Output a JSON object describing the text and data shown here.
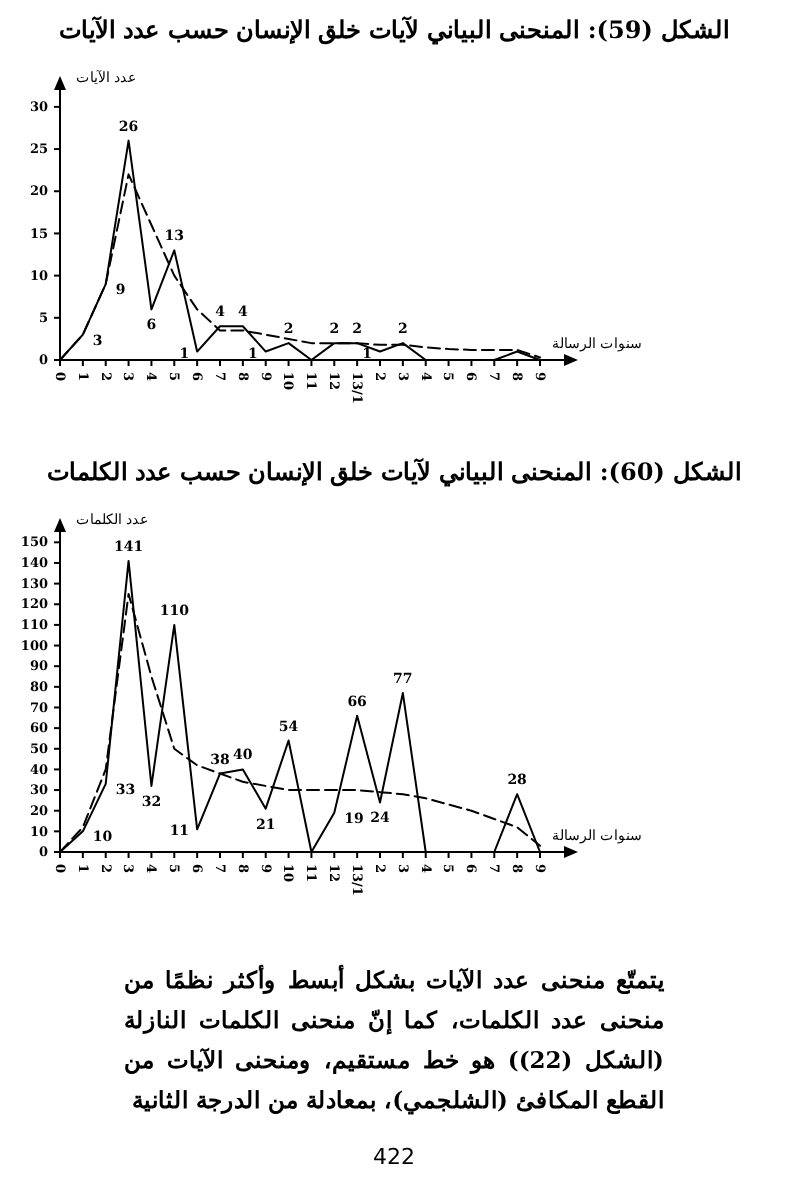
{
  "chart_data": [
    {
      "type": "line",
      "title": "الشكل (59): المنحنى البياني لآيات خلق الإنسان حسب عدد الآيات",
      "xlabel": "سنوات الرسالة",
      "ylabel": "عدد الآيات",
      "categories": [
        "0",
        "1",
        "2",
        "3",
        "4",
        "5",
        "6",
        "7",
        "8",
        "9",
        "10",
        "11",
        "12",
        "13/1",
        "2",
        "3",
        "4",
        "5",
        "6",
        "7",
        "8",
        "9"
      ],
      "ylim": [
        0,
        32
      ],
      "yticks": [
        0,
        5,
        10,
        15,
        20,
        25,
        30
      ],
      "grid": false,
      "marker": "none",
      "series": [
        {
          "color": "#000000",
          "line_style": "solid",
          "values": [
            0,
            3,
            9,
            26,
            6,
            13,
            1,
            4,
            4,
            1,
            2,
            0,
            2,
            2,
            1,
            2,
            0,
            0,
            0,
            0,
            1,
            0
          ],
          "value_labels": [
            null,
            "3",
            "9",
            "26",
            "6",
            "13",
            "1",
            "4",
            "4",
            "1",
            "2",
            null,
            "2",
            "2",
            "1",
            "2",
            null,
            null,
            null,
            null,
            null,
            null
          ]
        },
        {
          "color": "#000000",
          "line_style": "dashed",
          "values": [
            0,
            3,
            9,
            22,
            16,
            10,
            6,
            3.5,
            3.5,
            3,
            2.5,
            2,
            2,
            2,
            1.8,
            1.8,
            1.5,
            1.3,
            1.2,
            1.2,
            1.2,
            0.3
          ]
        }
      ]
    },
    {
      "type": "line",
      "title": "الشكل (60): المنحنى البياني لآيات خلق الإنسان حسب عدد الكلمات",
      "xlabel": "سنوات الرسالة",
      "ylabel": "عدد الكلمات",
      "categories": [
        "0",
        "1",
        "2",
        "3",
        "4",
        "5",
        "6",
        "7",
        "8",
        "9",
        "10",
        "11",
        "12",
        "13/1",
        "2",
        "3",
        "4",
        "5",
        "6",
        "7",
        "8",
        "9"
      ],
      "ylim": [
        0,
        155
      ],
      "yticks": [
        0,
        10,
        20,
        30,
        40,
        50,
        60,
        70,
        80,
        90,
        100,
        110,
        120,
        130,
        140,
        150
      ],
      "grid": false,
      "marker": "none",
      "series": [
        {
          "color": "#000000",
          "line_style": "solid",
          "values": [
            0,
            10,
            33,
            141,
            32,
            110,
            11,
            38,
            40,
            21,
            54,
            0,
            19,
            66,
            24,
            77,
            0,
            0,
            0,
            0,
            28,
            0
          ],
          "value_labels": [
            null,
            "10",
            "33",
            "141",
            "32",
            "110",
            "11",
            "38",
            "40",
            "21",
            "54",
            null,
            "19",
            "66",
            "24",
            "77",
            null,
            null,
            null,
            null,
            "28",
            null
          ]
        },
        {
          "color": "#000000",
          "line_style": "dashed",
          "values": [
            0,
            12,
            40,
            125,
            85,
            50,
            42,
            38,
            34,
            32,
            30,
            30,
            30,
            30,
            29,
            28,
            26,
            23,
            20,
            16,
            12,
            3
          ]
        }
      ]
    },
    {
      "type": "other",
      "annotations": [
        "يتمتّع منحنى عدد الآيات بشكل أبسط وأكثر نظمًا من منحنى عدد الكلمات، كما إنّ منحنى الكلمات النازلة (الشكل (22)) هو خط مستقيم، ومنحنى الآيات من القطع المكافئ (الشلجمي)، بمعادلة من الدرجة الثانية",
        "422"
      ]
    }
  ]
}
